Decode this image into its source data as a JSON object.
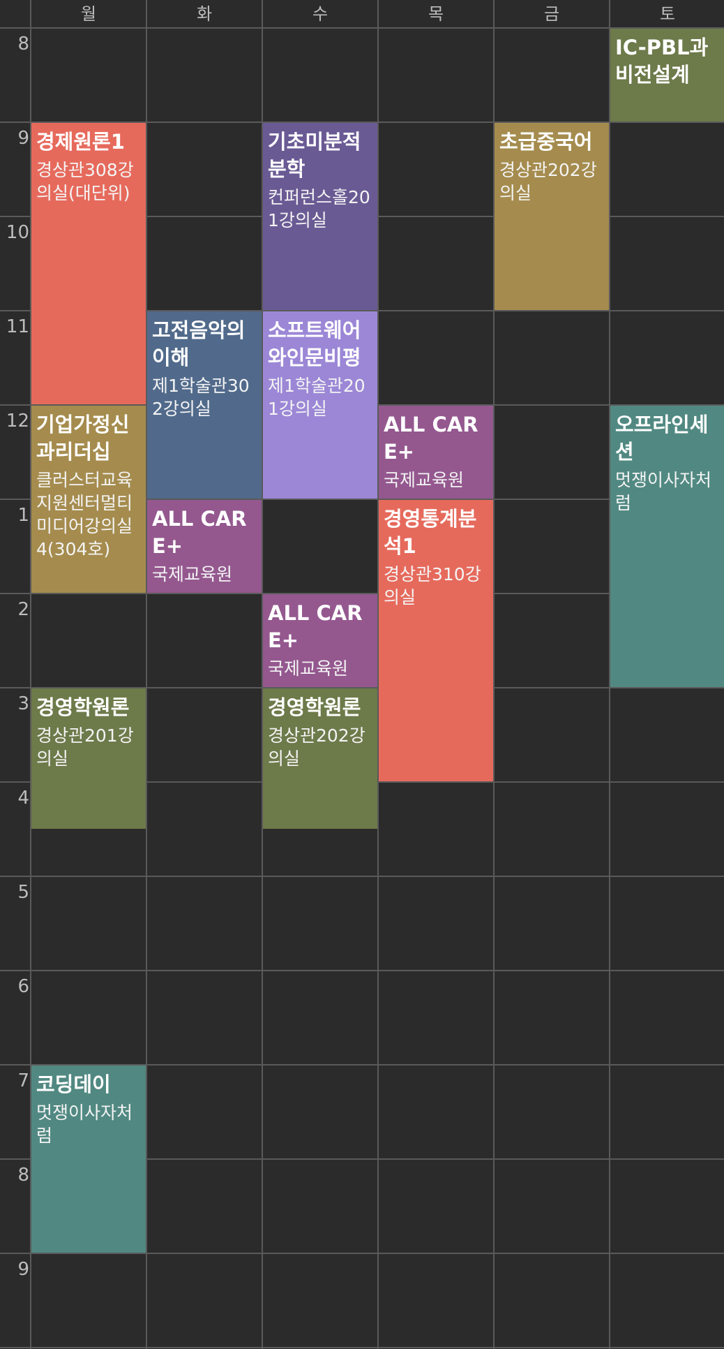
{
  "timetable": {
    "days": [
      "월",
      "화",
      "수",
      "목",
      "금",
      "토"
    ],
    "hours": [
      "8",
      "9",
      "10",
      "11",
      "12",
      "1",
      "2",
      "3",
      "4",
      "5",
      "6",
      "7",
      "8",
      "9"
    ],
    "start_hour": 8,
    "courses": [
      {
        "title": "IC-PBL과비전설계",
        "room": "",
        "day": 5,
        "start": 8,
        "end": 9,
        "color": "#6d7a4a"
      },
      {
        "title": "경제원론1",
        "room": "경상관308강의실(대단위)",
        "day": 0,
        "start": 9,
        "end": 12,
        "color": "#e66a5c"
      },
      {
        "title": "기초미분적분학",
        "room": "컨퍼런스홀201강의실",
        "day": 2,
        "start": 9,
        "end": 11,
        "color": "#6a5a94"
      },
      {
        "title": "초급중국어",
        "room": "경상관202강의실",
        "day": 4,
        "start": 9,
        "end": 11,
        "color": "#a58c4e"
      },
      {
        "title": "고전음악의이해",
        "room": "제1학술관302강의실",
        "day": 1,
        "start": 11,
        "end": 13,
        "color": "#516a8b"
      },
      {
        "title": "소프트웨어와인문비평",
        "room": "제1학술관201강의실",
        "day": 2,
        "start": 11,
        "end": 13,
        "color": "#9b87d6"
      },
      {
        "title": "기업가정신과리더십",
        "room": "클러스터교육지원센터멀티미디어강의실4(304호)",
        "day": 0,
        "start": 12,
        "end": 14,
        "color": "#a58c4e"
      },
      {
        "title": "ALL CARE+",
        "room": "국제교육원",
        "day": 3,
        "start": 12,
        "end": 13,
        "color": "#94588f"
      },
      {
        "title": "오프라인세션",
        "room": "멋쟁이사자처럼",
        "day": 5,
        "start": 12,
        "end": 15,
        "color": "#518982"
      },
      {
        "title": "ALL CARE+",
        "room": "국제교육원",
        "day": 1,
        "start": 13,
        "end": 14,
        "color": "#94588f"
      },
      {
        "title": "경영통계분석1",
        "room": "경상관310강의실",
        "day": 3,
        "start": 13,
        "end": 16,
        "color": "#e66a5c"
      },
      {
        "title": "ALL CARE+",
        "room": "국제교육원",
        "day": 2,
        "start": 14,
        "end": 15,
        "color": "#94588f"
      },
      {
        "title": "경영학원론",
        "room": "경상관201강의실",
        "day": 0,
        "start": 15,
        "end": 16.5,
        "color": "#6d7a4a"
      },
      {
        "title": "경영학원론",
        "room": "경상관202강의실",
        "day": 2,
        "start": 15,
        "end": 16.5,
        "color": "#6d7a4a"
      },
      {
        "title": "코딩데이",
        "room": "멋쟁이사자처럼",
        "day": 0,
        "start": 19,
        "end": 21,
        "color": "#518982"
      }
    ]
  }
}
